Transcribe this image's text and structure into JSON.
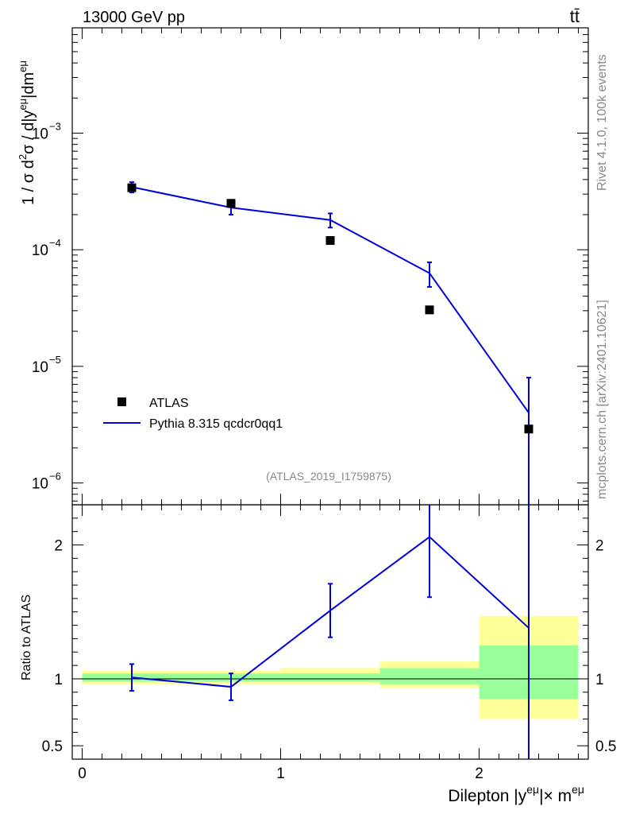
{
  "chart_data": {
    "type": "line",
    "header": {
      "left": "13000 GeV pp",
      "right": "tt̄"
    },
    "side_labels": {
      "version": "Rivet 4.1.0,  100k events",
      "site": "mcplots.cern.ch [arXiv:2401.10621]"
    },
    "analysis_id": "(ATLAS_2019_I1759875)",
    "x": [
      0.25,
      0.75,
      1.25,
      1.75,
      2.25
    ],
    "x_bin_edges": [
      0,
      0.5,
      1.0,
      1.5,
      2.0,
      2.5
    ],
    "xlim": [
      -0.05,
      2.55
    ],
    "xticks": [
      0,
      1,
      2
    ],
    "xtick_labels": [
      "0",
      "1",
      "2"
    ],
    "xlabel": {
      "base": "Dilepton |y",
      "sup1": "eμ",
      "mid": "|× m",
      "sup2": "eμ"
    },
    "main": {
      "yscale": "log",
      "ylim": [
        6.5e-07,
        0.008
      ],
      "ylabel": {
        "a": "1 / σ  d",
        "sup2": "2",
        "b": "σ / d|y",
        "sup_em": "eμ",
        "c": "|dm",
        "sup_em2": "eμ"
      },
      "yticks": [
        1e-06,
        1e-05,
        0.0001,
        0.001
      ],
      "ytick_mant": [
        "10",
        "10",
        "10",
        "10"
      ],
      "ytick_exp": [
        "−6",
        "−5",
        "−4",
        "−3"
      ],
      "series": [
        {
          "name": "ATLAS",
          "style": "marker",
          "color": "#000000",
          "values": [
            0.00034,
            0.00025,
            0.00012,
            3.05e-05,
            2.9e-06
          ],
          "err_low": [
            2e-05,
            1.2e-05,
            5e-06,
            1.5e-06,
            2e-07
          ],
          "err_high": [
            2e-05,
            1.2e-05,
            5e-06,
            1.5e-06,
            2e-07
          ]
        },
        {
          "name": "Pythia 8.315 qcdcr0qq1",
          "style": "line",
          "color": "#0000dd",
          "values": [
            0.000345,
            0.00023,
            0.00018,
            6.3e-05,
            4e-06
          ],
          "err_low": [
            3.5e-05,
            3e-05,
            2.5e-05,
            1.5e-05,
            3.999e-06
          ],
          "err_high": [
            3.5e-05,
            3e-05,
            2.5e-05,
            1.5e-05,
            4e-06
          ]
        }
      ]
    },
    "ratio": {
      "ylabel": "Ratio to ATLAS",
      "ylim": [
        0.4,
        2.3
      ],
      "yticks": [
        0.5,
        1,
        2
      ],
      "ytick_labels": [
        "0.5",
        "1",
        "2"
      ],
      "yellow_band": [
        [
          0.96,
          1.06
        ],
        [
          0.96,
          1.06
        ],
        [
          0.96,
          1.08
        ],
        [
          0.93,
          1.13
        ],
        [
          0.7,
          1.47
        ]
      ],
      "green_band": [
        [
          0.98,
          1.04
        ],
        [
          0.98,
          1.04
        ],
        [
          0.98,
          1.04
        ],
        [
          0.96,
          1.08
        ],
        [
          0.85,
          1.25
        ]
      ],
      "values": [
        1.01,
        0.94,
        1.51,
        2.06,
        1.38
      ],
      "err_low": [
        0.1,
        0.1,
        0.2,
        0.45,
        1.38
      ],
      "err_high": [
        0.1,
        0.1,
        0.2,
        0.45,
        1.4
      ]
    }
  }
}
